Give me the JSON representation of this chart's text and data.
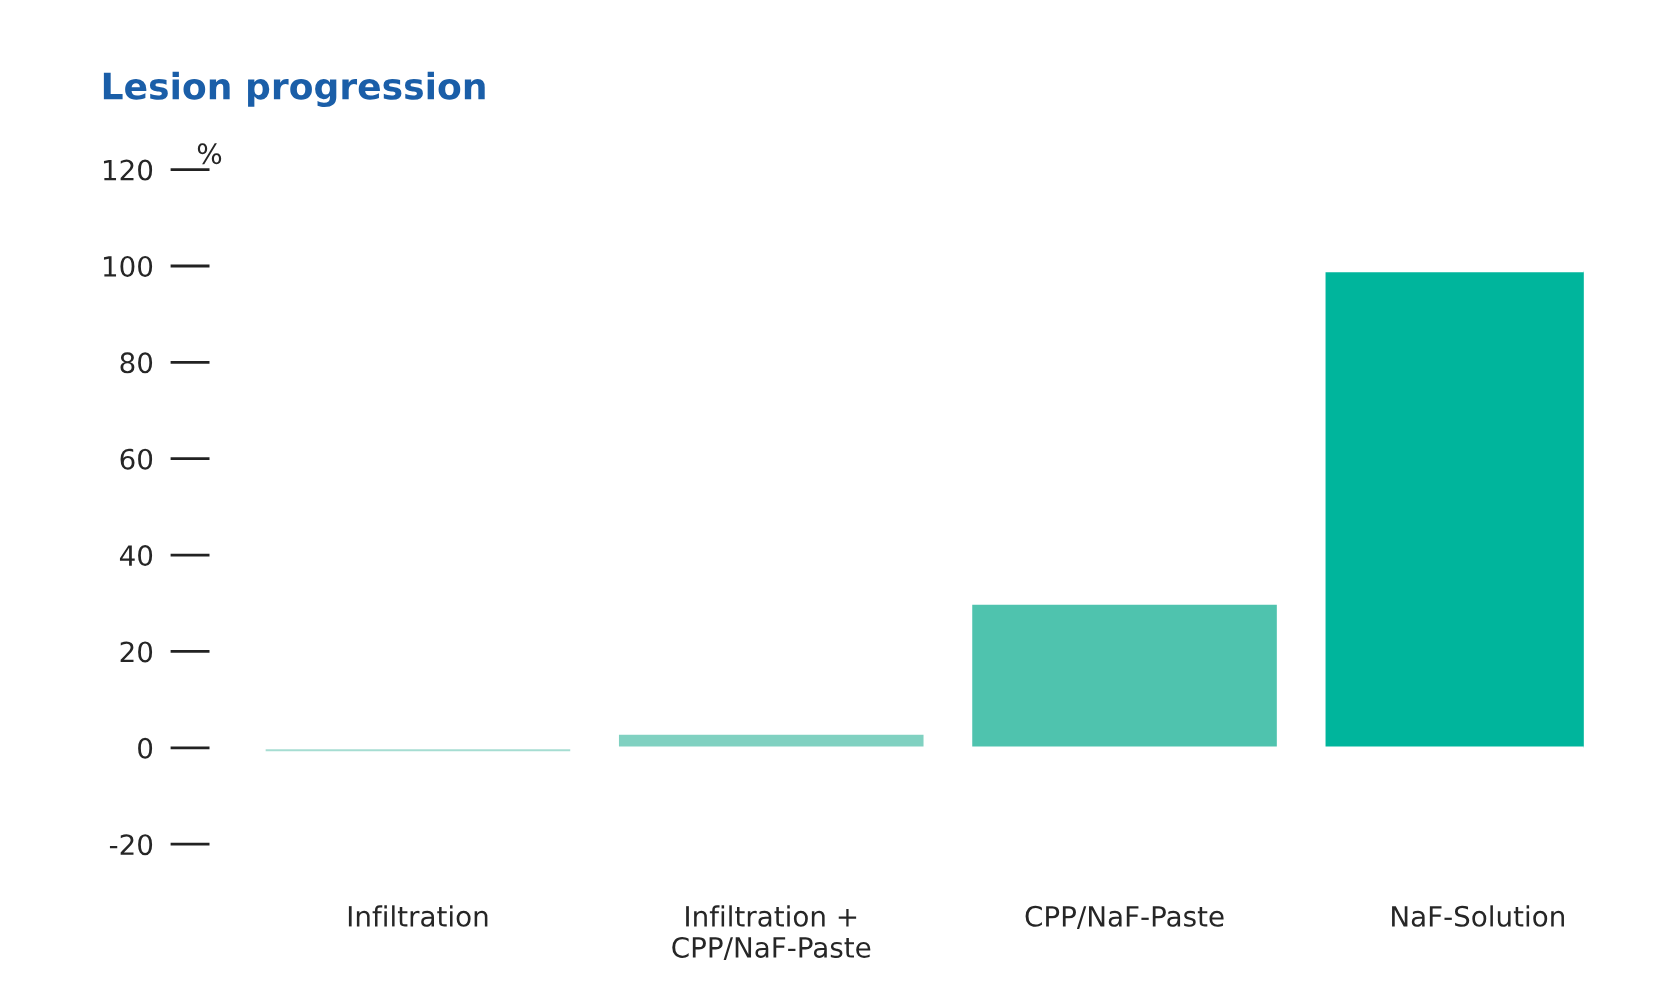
{
  "chart_data": {
    "type": "bar",
    "title": "Lesion progression",
    "ylabel": "%",
    "categories": [
      "Infiltration",
      "Infiltration +\nCPP/NaF-Paste",
      "CPP/NaF-Paste",
      "NaF-Solution"
    ],
    "values": [
      -1,
      3,
      30,
      99
    ],
    "colors": [
      "#a6ddd2",
      "#80d1c1",
      "#4fc3ae",
      "#00b59c"
    ],
    "ylim": [
      -20,
      120
    ],
    "yticks": [
      -20,
      0,
      20,
      40,
      60,
      80,
      100,
      120
    ],
    "grid": false,
    "legend": false
  }
}
